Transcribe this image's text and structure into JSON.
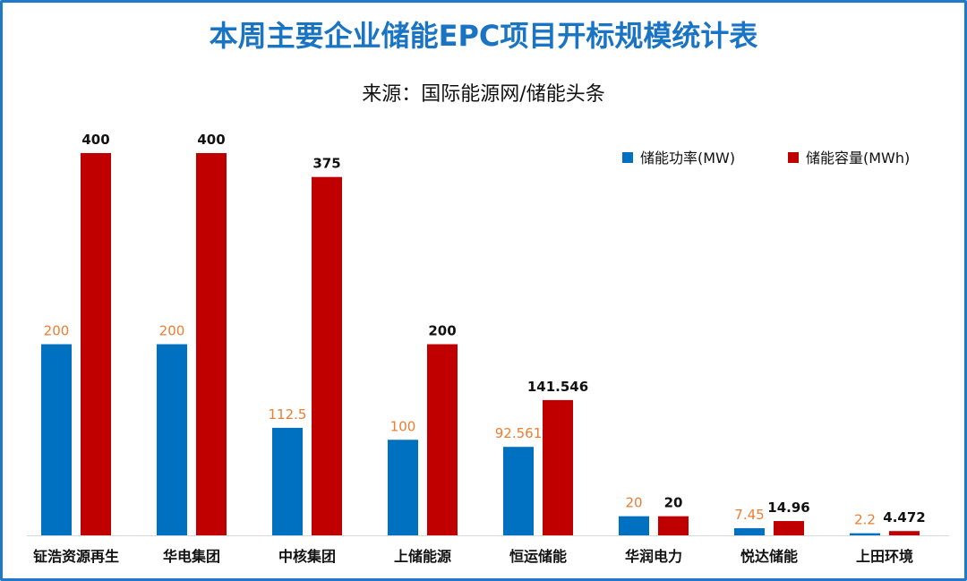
{
  "chart_data": {
    "type": "bar",
    "title": "本周主要企业储能EPC项目开标规模统计表",
    "subtitle": "来源：国际能源网/储能头条",
    "categories": [
      "钲浩资源再生",
      "华电集团",
      "中核集团",
      "上储能源",
      "恒运储能",
      "华润电力",
      "悦达储能",
      "上田环境"
    ],
    "series": [
      {
        "name": "储能功率(MW)",
        "color": "#0070c0",
        "label_color": "#ed7d31",
        "values": [
          200,
          200,
          112.5,
          100,
          92.561,
          20,
          7.45,
          2.2
        ],
        "labels": [
          "200",
          "200",
          "112.5",
          "100",
          "92.561",
          "20",
          "7.45",
          "2.2"
        ]
      },
      {
        "name": "储能容量(MWh)",
        "color": "#c00000",
        "label_color": "#111111",
        "values": [
          400,
          400,
          375,
          200,
          141.546,
          20,
          14.96,
          4.472
        ],
        "labels": [
          "400",
          "400",
          "375",
          "200",
          "141.546",
          "20",
          "14.96",
          "4.472"
        ]
      }
    ],
    "xlabel": "",
    "ylabel": "",
    "ylim": [
      0,
      400
    ],
    "grid": false,
    "legend": "top-right"
  }
}
